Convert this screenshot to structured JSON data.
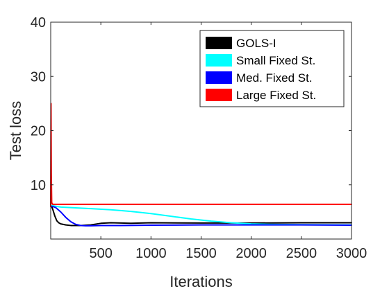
{
  "chart_data": {
    "type": "line",
    "title": "",
    "xlabel": "Iterations",
    "ylabel": "Test loss",
    "xlim": [
      0,
      3000
    ],
    "ylim": [
      0,
      40
    ],
    "xticks": [
      500,
      1000,
      1500,
      2000,
      2500,
      3000
    ],
    "yticks": [
      10,
      20,
      30,
      40
    ],
    "grid": false,
    "legend_position": "top-right",
    "series": [
      {
        "name": "GOLS-I",
        "color": "#000000",
        "x": [
          0,
          10,
          20,
          40,
          60,
          80,
          100,
          150,
          200,
          300,
          400,
          500,
          600,
          800,
          1000,
          1500,
          2000,
          2500,
          3000
        ],
        "y": [
          6.3,
          6.0,
          5.5,
          4.3,
          3.4,
          3.0,
          2.8,
          2.6,
          2.5,
          2.5,
          2.6,
          2.9,
          3.0,
          2.9,
          3.0,
          2.95,
          2.95,
          3.0,
          3.0
        ]
      },
      {
        "name": "Small Fixed St.",
        "color": "#00ffff",
        "x": [
          0,
          100,
          200,
          400,
          600,
          800,
          1000,
          1200,
          1400,
          1600,
          1800,
          2000,
          2200,
          2500,
          3000
        ],
        "y": [
          6.2,
          5.9,
          5.8,
          5.6,
          5.4,
          5.1,
          4.7,
          4.2,
          3.7,
          3.3,
          3.0,
          2.8,
          2.7,
          2.65,
          2.6
        ]
      },
      {
        "name": "Med. Fixed St.",
        "color": "#0000ff",
        "x": [
          0,
          20,
          50,
          100,
          150,
          200,
          250,
          300,
          350,
          400,
          500,
          700,
          1000,
          1500,
          2000,
          2500,
          3000
        ],
        "y": [
          6.0,
          6.0,
          5.8,
          5.0,
          4.0,
          3.2,
          2.7,
          2.5,
          2.45,
          2.45,
          2.5,
          2.5,
          2.55,
          2.6,
          2.6,
          2.6,
          2.55
        ]
      },
      {
        "name": "Large Fixed St.",
        "color": "#ff0000",
        "x": [
          0,
          3,
          6,
          10,
          20,
          50,
          100,
          500,
          1000,
          2000,
          3000
        ],
        "y": [
          6.0,
          25.0,
          12.0,
          6.7,
          6.4,
          6.4,
          6.4,
          6.4,
          6.4,
          6.4,
          6.4
        ]
      }
    ]
  }
}
